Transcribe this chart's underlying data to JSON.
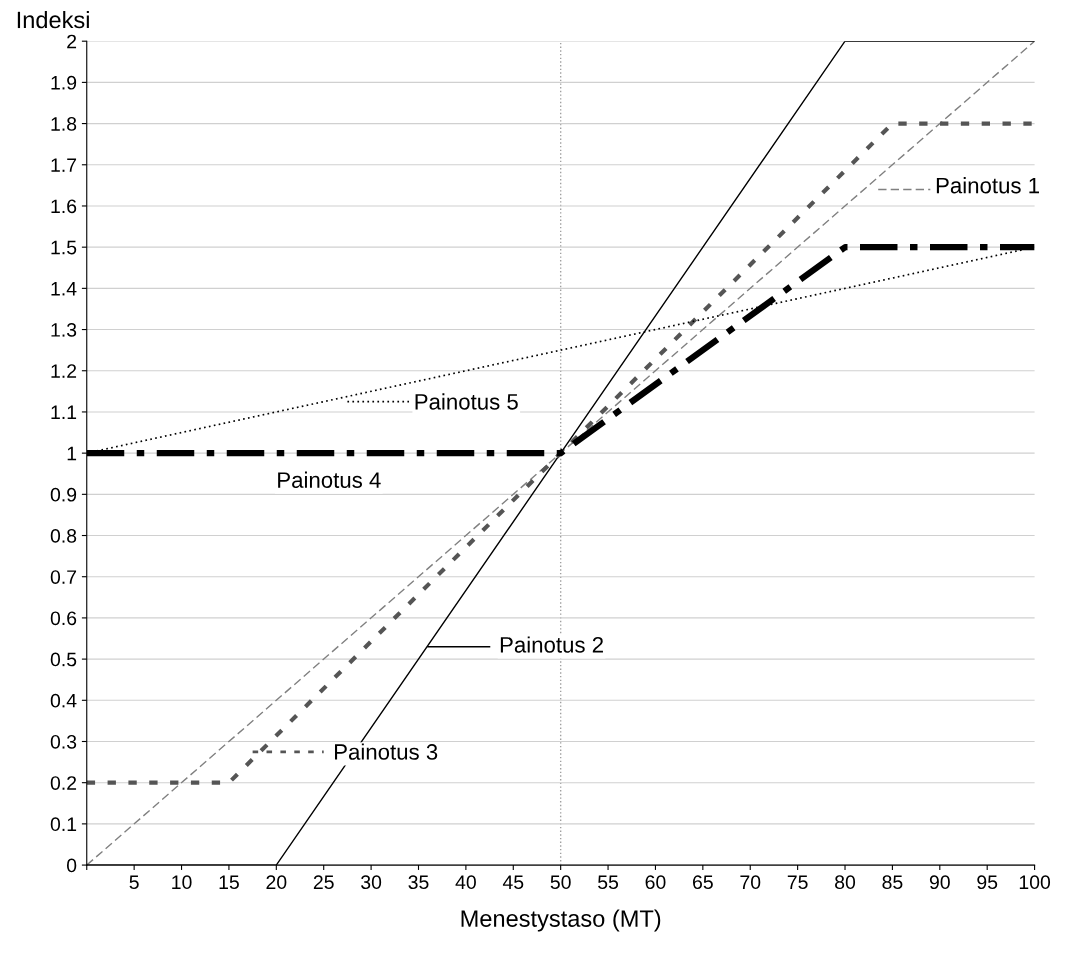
{
  "chart_data": {
    "type": "line",
    "xlabel": "Menestystaso (MT)",
    "ylabel": "Indeksi",
    "series": [
      {
        "name": "Painotus 1",
        "color": "#808080",
        "line_style": "dashed",
        "x": [
          0,
          100
        ],
        "values": [
          0,
          2
        ]
      },
      {
        "name": "Painotus 2",
        "color": "#000000",
        "line_style": "solid",
        "x": [
          0,
          20,
          80,
          100
        ],
        "values": [
          0,
          0,
          2,
          2
        ]
      },
      {
        "name": "Painotus 3",
        "color": "#555555",
        "line_style": "dotted",
        "x": [
          0,
          15,
          85,
          100
        ],
        "values": [
          0.2,
          0.2,
          1.8,
          1.8
        ]
      },
      {
        "name": "Painotus 4",
        "color": "#000000",
        "line_style": "dashed",
        "x": [
          0,
          50,
          80,
          100
        ],
        "values": [
          1,
          1,
          1.5,
          1.5
        ]
      },
      {
        "name": "Painotus 5",
        "color": "#000000",
        "line_style": "dotted",
        "x": [
          0,
          100
        ],
        "values": [
          1,
          1.5
        ]
      }
    ],
    "xlim": [
      0,
      100
    ],
    "ylim": [
      0,
      2
    ],
    "xticks": [
      {
        "value": 0,
        "label": null
      },
      5,
      10,
      15,
      20,
      25,
      30,
      35,
      40,
      45,
      50,
      55,
      60,
      65,
      70,
      75,
      80,
      85,
      90,
      95,
      100
    ],
    "yticks": [
      0,
      0.1,
      0.2,
      0.3,
      0.4,
      0.5,
      0.6,
      0.7,
      0.8,
      0.9,
      1,
      1.1,
      1.2,
      1.3,
      1.4,
      1.5,
      1.6,
      1.7,
      1.8,
      1.9,
      2
    ],
    "ref_lines": [
      {
        "axis": "x",
        "value": 50,
        "color": "#a0a0a0",
        "line_style": "dotted"
      }
    ],
    "grid": "y",
    "legend": "center",
    "marker": "none"
  }
}
